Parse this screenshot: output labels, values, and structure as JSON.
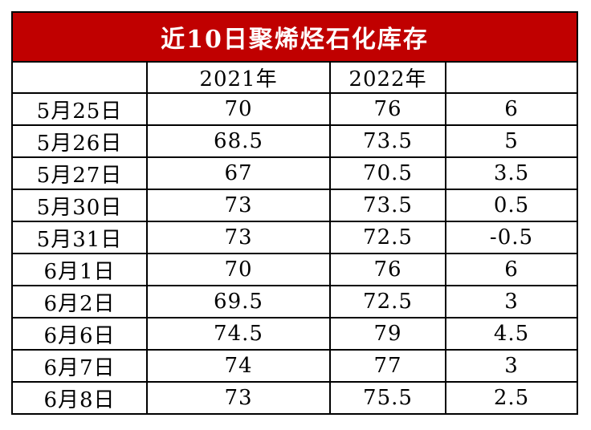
{
  "table": {
    "title": "近10日聚烯烃石化库存",
    "headers": [
      "",
      "2021年",
      "2022年",
      ""
    ],
    "rows": [
      [
        "5月25日",
        "70",
        "76",
        "6"
      ],
      [
        "5月26日",
        "68.5",
        "73.5",
        "5"
      ],
      [
        "5月27日",
        "67",
        "70.5",
        "3.5"
      ],
      [
        "5月30日",
        "73",
        "73.5",
        "0.5"
      ],
      [
        "5月31日",
        "73",
        "72.5",
        "-0.5"
      ],
      [
        "6月1日",
        "70",
        "76",
        "6"
      ],
      [
        "6月2日",
        "69.5",
        "72.5",
        "3"
      ],
      [
        "6月6日",
        "74.5",
        "79",
        "4.5"
      ],
      [
        "6月7日",
        "74",
        "77",
        "3"
      ],
      [
        "6月8日",
        "73",
        "75.5",
        "2.5"
      ]
    ],
    "title_bg_color": "#c00000",
    "title_text_color": "#ffffff"
  }
}
